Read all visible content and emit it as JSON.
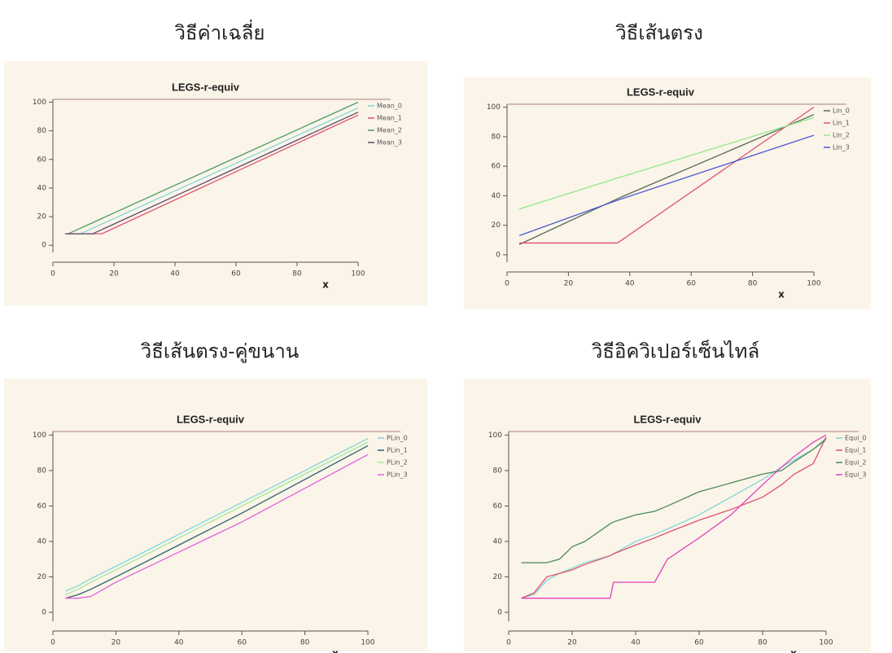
{
  "chart_data": [
    {
      "type": "line",
      "heading": "วิธีค่าเฉลี่ย",
      "title": "LEGS-r-equiv",
      "x_label": "x",
      "x": [
        4,
        5,
        9,
        13,
        16,
        100
      ],
      "series": [
        {
          "name": "Mean_0",
          "color": "#7fd8d8",
          "values": [
            8,
            8,
            8,
            11.9,
            14.8,
            96
          ]
        },
        {
          "name": "Mean_1",
          "color": "#e05070",
          "values": [
            8,
            8,
            8,
            8,
            8,
            91
          ]
        },
        {
          "name": "Mean_2",
          "color": "#4a9a6a",
          "values": [
            8,
            8,
            11.9,
            15.7,
            18.7,
            100
          ]
        },
        {
          "name": "Mean_3",
          "color": "#5a4a6a",
          "values": [
            8,
            8,
            8,
            8,
            10.9,
            93
          ]
        }
      ],
      "xlim": [
        0,
        100
      ],
      "xticks": [
        0,
        20,
        40,
        60,
        80,
        100
      ],
      "ylim": [
        -5,
        102
      ],
      "yticks": [
        0,
        20,
        40,
        60,
        80,
        100
      ]
    },
    {
      "type": "line",
      "heading": "วิธีเส้นตรง",
      "title": "LEGS-r-equiv",
      "x_label": "x",
      "x": [
        4,
        36,
        100
      ],
      "series": [
        {
          "name": "Lin_0",
          "color": "#556b55",
          "values": [
            7,
            38,
            95
          ]
        },
        {
          "name": "Lin_1",
          "color": "#e05070",
          "values": [
            8,
            8,
            100
          ]
        },
        {
          "name": "Lin_2",
          "color": "#90e890",
          "values": [
            31,
            52,
            93
          ]
        },
        {
          "name": "Lin_3",
          "color": "#4a5ad0",
          "values": [
            13,
            37,
            81
          ]
        }
      ],
      "xlim": [
        0,
        100
      ],
      "xticks": [
        0,
        20,
        40,
        60,
        80,
        100
      ],
      "ylim": [
        -5,
        102
      ],
      "yticks": [
        0,
        20,
        40,
        60,
        80,
        100
      ]
    },
    {
      "type": "line",
      "heading": "วิธีเส้นตรง-คู่ขนาน",
      "title": "LEGS-r-equiv",
      "x_label": "x",
      "x": [
        4,
        8,
        12,
        20,
        40,
        60,
        80,
        100
      ],
      "series": [
        {
          "name": "PLin_0",
          "color": "#7fd8d8",
          "values": [
            12,
            15,
            19,
            26,
            44,
            62,
            80,
            98
          ]
        },
        {
          "name": "PLin_1",
          "color": "#2f5f6f",
          "values": [
            8,
            10,
            13,
            20,
            38,
            56,
            75,
            94
          ]
        },
        {
          "name": "PLin_2",
          "color": "#a0e8a0",
          "values": [
            10,
            13,
            17,
            24,
            42,
            60,
            78,
            96
          ]
        },
        {
          "name": "PLin_3",
          "color": "#e060e0",
          "values": [
            8,
            8,
            9,
            17,
            34,
            51,
            70,
            89
          ]
        }
      ],
      "xlim": [
        0,
        100
      ],
      "xticks": [
        0,
        20,
        40,
        60,
        80,
        100
      ],
      "ylim": [
        -5,
        102
      ],
      "yticks": [
        0,
        20,
        40,
        60,
        80,
        100
      ]
    },
    {
      "type": "line",
      "heading": "วิธีอิควิเปอร์เซ็นไทล์",
      "title": "LEGS-r-equiv",
      "x_label": "x",
      "x": [
        4,
        8,
        12,
        16,
        20,
        24,
        32,
        33,
        40,
        46,
        50,
        60,
        70,
        80,
        86,
        90,
        96,
        100
      ],
      "series": [
        {
          "name": "Equi_0",
          "color": "#7fd8d8",
          "values": [
            8,
            10,
            18,
            22,
            25,
            28,
            32,
            33,
            40,
            44,
            47,
            55,
            65,
            75,
            82,
            86,
            92,
            97
          ]
        },
        {
          "name": "Equi_1",
          "color": "#e05070",
          "values": [
            8,
            11,
            20,
            22,
            24,
            27,
            32,
            33,
            38,
            42,
            45,
            52,
            58,
            65,
            72,
            78,
            84,
            99
          ]
        },
        {
          "name": "Equi_2",
          "color": "#4a8a5a",
          "values": [
            28,
            28,
            28,
            30,
            37,
            40,
            50,
            51,
            55,
            57,
            60,
            68,
            73,
            78,
            80,
            85,
            92,
            98
          ]
        },
        {
          "name": "Equi_3",
          "color": "#e040c0",
          "values": [
            8,
            8,
            8,
            8,
            8,
            8,
            8,
            17,
            17,
            17,
            30,
            42,
            55,
            72,
            82,
            88,
            96,
            100
          ]
        }
      ],
      "xlim": [
        0,
        100
      ],
      "xticks": [
        0,
        20,
        40,
        60,
        80,
        100
      ],
      "ylim": [
        -5,
        102
      ],
      "yticks": [
        0,
        20,
        40,
        60,
        80,
        100
      ]
    }
  ]
}
